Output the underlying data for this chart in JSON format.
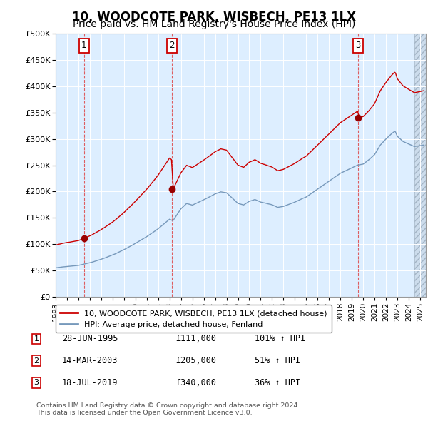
{
  "title": "10, WOODCOTE PARK, WISBECH, PE13 1LX",
  "subtitle": "Price paid vs. HM Land Registry's House Price Index (HPI)",
  "title_fontsize": 12,
  "subtitle_fontsize": 10,
  "xlim_start": 1993.0,
  "xlim_end": 2025.5,
  "ylim": [
    0,
    500000
  ],
  "yticks": [
    0,
    50000,
    100000,
    150000,
    200000,
    250000,
    300000,
    350000,
    400000,
    450000,
    500000
  ],
  "ytick_labels": [
    "£0",
    "£50K",
    "£100K",
    "£150K",
    "£200K",
    "£250K",
    "£300K",
    "£350K",
    "£400K",
    "£450K",
    "£500K"
  ],
  "xtick_years": [
    1993,
    1994,
    1995,
    1996,
    1997,
    1998,
    1999,
    2000,
    2001,
    2002,
    2003,
    2004,
    2005,
    2006,
    2007,
    2008,
    2009,
    2010,
    2011,
    2012,
    2013,
    2014,
    2015,
    2016,
    2017,
    2018,
    2019,
    2020,
    2021,
    2022,
    2023,
    2024,
    2025
  ],
  "red_line_color": "#cc0000",
  "blue_line_color": "#7799bb",
  "sale_marker_color": "#990000",
  "vline_color_red": "#dd4444",
  "background_color": "#ddeeff",
  "grid_color": "white",
  "annotation_box_edgecolor": "#cc0000",
  "hatch_region_start": 2024.5,
  "sales": [
    {
      "date_x": 1995.49,
      "price": 111000,
      "label": "1"
    },
    {
      "date_x": 2003.2,
      "price": 205000,
      "label": "2"
    },
    {
      "date_x": 2019.54,
      "price": 340000,
      "label": "3"
    }
  ],
  "legend_entries": [
    "10, WOODCOTE PARK, WISBECH, PE13 1LX (detached house)",
    "HPI: Average price, detached house, Fenland"
  ],
  "table_rows": [
    {
      "num": "1",
      "date": "28-JUN-1995",
      "price": "£111,000",
      "change": "101% ↑ HPI"
    },
    {
      "num": "2",
      "date": "14-MAR-2003",
      "price": "£205,000",
      "change": "51% ↑ HPI"
    },
    {
      "num": "3",
      "date": "18-JUL-2019",
      "price": "£340,000",
      "change": "36% ↑ HPI"
    }
  ],
  "footnote": "Contains HM Land Registry data © Crown copyright and database right 2024.\nThis data is licensed under the Open Government Licence v3.0."
}
